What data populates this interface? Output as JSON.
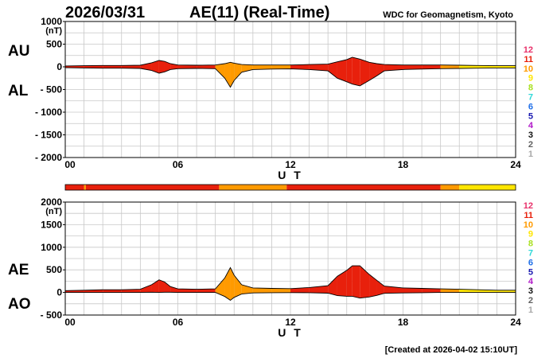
{
  "header": {
    "date": "2026/03/31",
    "title": "AE(11) (Real-Time)",
    "source": "WDC for Geomagnetism, Kyoto"
  },
  "footer": {
    "created": "[Created at 2026-04-02 15:10UT]"
  },
  "station_scale": {
    "labels": [
      "12",
      "11",
      "10",
      "9",
      "8",
      "7",
      "6",
      "5",
      "4",
      "3",
      "2",
      "1"
    ],
    "colors": [
      "#e8306a",
      "#e8200c",
      "#ff9a00",
      "#ffe600",
      "#a8e020",
      "#30d8d8",
      "#1f6fe8",
      "#1818b0",
      "#b018c8",
      "#101010",
      "#606060",
      "#a8a8a8"
    ]
  },
  "station_bar": {
    "segments": [
      {
        "start": 0,
        "end": 1.0,
        "count": 11
      },
      {
        "start": 1.0,
        "end": 1.1,
        "count": 10
      },
      {
        "start": 1.1,
        "end": 8.2,
        "count": 11
      },
      {
        "start": 8.2,
        "end": 11.8,
        "count": 10
      },
      {
        "start": 11.8,
        "end": 20.0,
        "count": 11
      },
      {
        "start": 20.0,
        "end": 21.0,
        "count": 10
      },
      {
        "start": 21.0,
        "end": 21.5,
        "count": 9
      },
      {
        "start": 21.5,
        "end": 24.0,
        "count": 9
      }
    ]
  },
  "chart_data": [
    {
      "type": "area",
      "name": "AU-AL",
      "title": "AE(11) (Real-Time)",
      "xlabel": "U T",
      "ylabel": "(nT)",
      "upper_label": "AU",
      "lower_label": "AL",
      "xlim": [
        0,
        24
      ],
      "ylim": [
        -2000,
        1000
      ],
      "xticks": [
        0,
        6,
        12,
        18,
        24
      ],
      "xtick_labels": [
        "00",
        "06",
        "12",
        "18",
        "24"
      ],
      "yticks": [
        1000,
        500,
        0,
        -500,
        -1000,
        -1500,
        -2000
      ],
      "ytick_labels": [
        "1000",
        "500",
        "0",
        "- 500",
        "- 1000",
        "- 1500",
        "- 2000"
      ],
      "grid": true,
      "series": [
        {
          "name": "AU",
          "x": [
            0,
            1,
            2,
            3,
            4,
            4.6,
            5.0,
            5.3,
            5.6,
            6,
            7,
            8,
            8.5,
            8.8,
            9.0,
            9.4,
            10,
            11,
            12,
            13,
            14,
            14.5,
            15.0,
            15.3,
            15.7,
            16.2,
            16.6,
            17,
            18,
            19,
            20,
            21,
            22,
            23,
            24
          ],
          "values": [
            20,
            25,
            30,
            30,
            35,
            90,
            140,
            120,
            70,
            40,
            35,
            40,
            70,
            100,
            80,
            50,
            40,
            40,
            40,
            50,
            60,
            110,
            160,
            210,
            170,
            100,
            70,
            50,
            40,
            40,
            40,
            35,
            30,
            25,
            25
          ]
        },
        {
          "name": "AL",
          "x": [
            0,
            1,
            2,
            3,
            4,
            4.6,
            5.0,
            5.3,
            5.6,
            6,
            7,
            8,
            8.5,
            8.8,
            9.0,
            9.4,
            10,
            11,
            12,
            13,
            14,
            14.5,
            15.0,
            15.3,
            15.7,
            16.2,
            16.6,
            17,
            18,
            19,
            20,
            21,
            22,
            23,
            24
          ],
          "values": [
            -20,
            -25,
            -30,
            -30,
            -35,
            -80,
            -140,
            -110,
            -60,
            -40,
            -35,
            -40,
            -250,
            -450,
            -300,
            -120,
            -60,
            -50,
            -45,
            -60,
            -90,
            -250,
            -330,
            -380,
            -420,
            -300,
            -200,
            -90,
            -60,
            -50,
            -40,
            -35,
            -30,
            -25,
            -25
          ]
        }
      ]
    },
    {
      "type": "area",
      "name": "AE-AO",
      "title": "AE(11) (Real-Time)",
      "xlabel": "U T",
      "ylabel": "(nT)",
      "upper_label": "AE",
      "lower_label": "AO",
      "xlim": [
        0,
        24
      ],
      "ylim": [
        -500,
        2000
      ],
      "xticks": [
        0,
        6,
        12,
        18,
        24
      ],
      "xtick_labels": [
        "00",
        "06",
        "12",
        "18",
        "24"
      ],
      "yticks": [
        2000,
        1500,
        1000,
        500,
        0,
        -500
      ],
      "ytick_labels": [
        "2000",
        "1500",
        "1000",
        "500",
        "0",
        "- 500"
      ],
      "grid": true,
      "series": [
        {
          "name": "AE",
          "x": [
            0,
            1,
            2,
            3,
            4,
            4.6,
            5.0,
            5.3,
            5.6,
            6,
            7,
            8,
            8.5,
            8.8,
            9.0,
            9.4,
            10,
            11,
            12,
            13,
            14,
            14.5,
            15.0,
            15.3,
            15.7,
            16.2,
            16.6,
            17,
            18,
            19,
            20,
            21,
            22,
            23,
            24
          ],
          "values": [
            40,
            50,
            60,
            60,
            70,
            170,
            280,
            230,
            130,
            80,
            70,
            80,
            320,
            550,
            380,
            170,
            100,
            90,
            85,
            110,
            150,
            360,
            490,
            590,
            590,
            400,
            270,
            140,
            100,
            90,
            80,
            70,
            60,
            50,
            50
          ]
        },
        {
          "name": "AO",
          "x": [
            0,
            1,
            2,
            3,
            4,
            4.6,
            5.0,
            5.3,
            5.6,
            6,
            7,
            8,
            8.5,
            8.8,
            9.0,
            9.4,
            10,
            11,
            12,
            13,
            14,
            14.5,
            15.0,
            15.3,
            15.7,
            16.2,
            16.6,
            17,
            18,
            19,
            20,
            21,
            22,
            23,
            24
          ],
          "values": [
            0,
            0,
            0,
            0,
            0,
            5,
            0,
            5,
            5,
            0,
            0,
            0,
            -90,
            -175,
            -110,
            -35,
            -10,
            -5,
            -3,
            -5,
            -15,
            -70,
            -85,
            -85,
            -125,
            -100,
            -65,
            -20,
            -10,
            -5,
            0,
            0,
            0,
            0,
            0
          ]
        }
      ]
    }
  ]
}
